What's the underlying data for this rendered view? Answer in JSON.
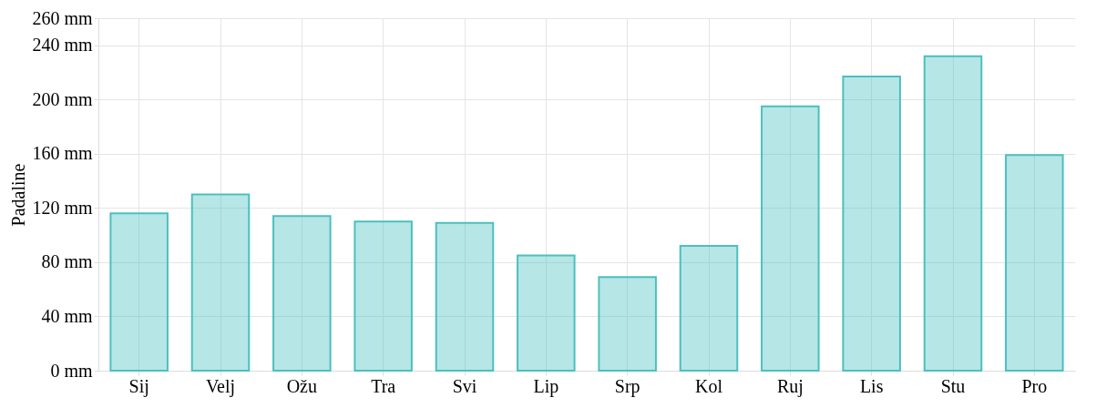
{
  "chart_data": {
    "type": "bar",
    "ylabel": "Padaline",
    "categories": [
      "Sij",
      "Velj",
      "Ožu",
      "Tra",
      "Svi",
      "Lip",
      "Srp",
      "Kol",
      "Ruj",
      "Lis",
      "Stu",
      "Pro"
    ],
    "series": [
      {
        "color": "#4bc0c0",
        "values": [
          116,
          130,
          114,
          110,
          109,
          85,
          69,
          92,
          195,
          217,
          232,
          159
        ]
      }
    ],
    "ylim": [
      0,
      260
    ],
    "yticks": [
      {
        "value": 0,
        "label": "0 mm"
      },
      {
        "value": 40,
        "label": "40 mm"
      },
      {
        "value": 80,
        "label": "80 mm"
      },
      {
        "value": 120,
        "label": "120 mm"
      },
      {
        "value": 160,
        "label": "160 mm"
      },
      {
        "value": 200,
        "label": "200 mm"
      },
      {
        "value": 240,
        "label": "240 mm"
      },
      {
        "value": 260,
        "label": "260 mm"
      }
    ],
    "grid": true
  }
}
